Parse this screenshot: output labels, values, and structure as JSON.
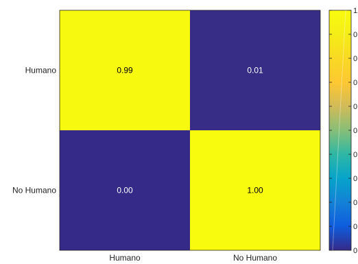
{
  "chart_data": {
    "type": "heatmap",
    "rows": [
      "Humano",
      "No Humano"
    ],
    "columns": [
      "Humano",
      "No Humano"
    ],
    "values": [
      [
        0.99,
        0.01
      ],
      [
        0.0,
        1.0
      ]
    ],
    "cell_labels": [
      [
        "0.99",
        "0.01"
      ],
      [
        "0.00",
        "1.00"
      ]
    ],
    "colorbar": {
      "range": [
        0,
        1
      ],
      "tick_labels": [
        "0",
        "0",
        "0",
        "0",
        "0",
        "0",
        "0",
        "0",
        "0",
        "0",
        "1"
      ],
      "colormap": "parula"
    },
    "colors": {
      "low": "#352a87",
      "high": "#f9fb0e",
      "text_on_low": "#ffffff",
      "text_on_high": "#000000"
    },
    "grid": false,
    "legend": "colorbar-right"
  }
}
